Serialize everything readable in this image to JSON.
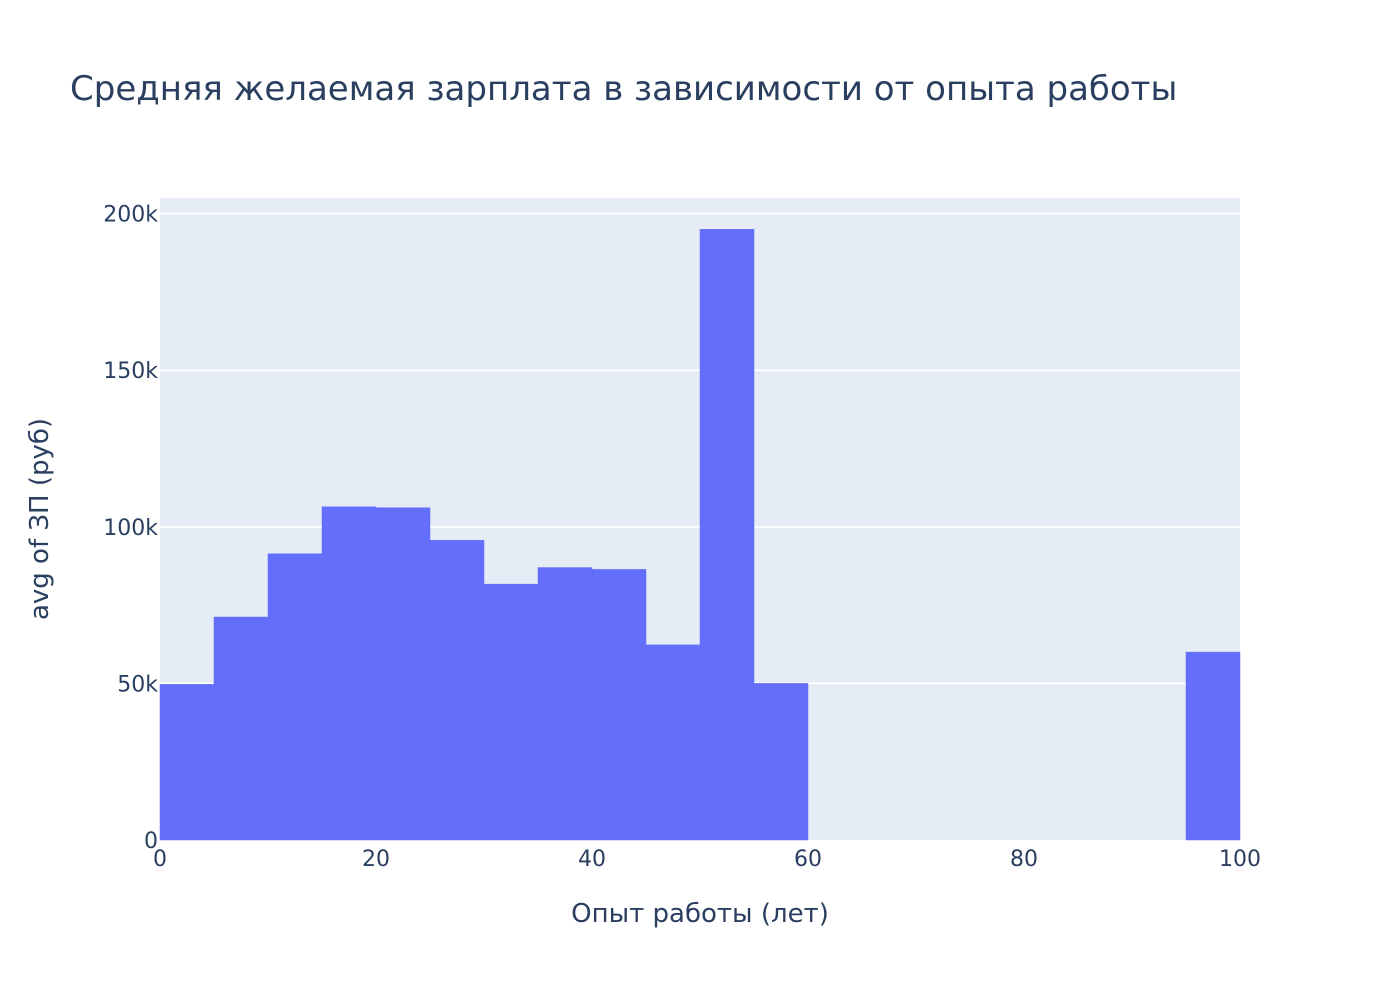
{
  "chart_data": {
    "type": "bar",
    "title": "Средняя желаемая зарплата в зависимости от опыта работы",
    "xlabel": "Опыт работы (лет)",
    "ylabel": "avg of ЗП (руб)",
    "xlim": [
      0,
      100
    ],
    "ylim": [
      0,
      205000
    ],
    "grid": true,
    "x_ticks": [
      {
        "value": 0,
        "label": "0"
      },
      {
        "value": 20,
        "label": "20"
      },
      {
        "value": 40,
        "label": "40"
      },
      {
        "value": 60,
        "label": "60"
      },
      {
        "value": 80,
        "label": "80"
      },
      {
        "value": 100,
        "label": "100"
      }
    ],
    "y_ticks": [
      {
        "value": 0,
        "label": "0"
      },
      {
        "value": 50000,
        "label": "50k"
      },
      {
        "value": 100000,
        "label": "100k"
      },
      {
        "value": 150000,
        "label": "150k"
      },
      {
        "value": 200000,
        "label": "200k"
      }
    ],
    "series": [
      {
        "color": "#636efa",
        "bins": [
          {
            "x0": 0,
            "x1": 5,
            "y": 49700
          },
          {
            "x0": 5,
            "x1": 10,
            "y": 71200
          },
          {
            "x0": 10,
            "x1": 15,
            "y": 91400
          },
          {
            "x0": 15,
            "x1": 20,
            "y": 106400
          },
          {
            "x0": 20,
            "x1": 25,
            "y": 106100
          },
          {
            "x0": 25,
            "x1": 30,
            "y": 95700
          },
          {
            "x0": 30,
            "x1": 35,
            "y": 81700
          },
          {
            "x0": 35,
            "x1": 40,
            "y": 87000
          },
          {
            "x0": 40,
            "x1": 45,
            "y": 86400
          },
          {
            "x0": 45,
            "x1": 50,
            "y": 62300
          },
          {
            "x0": 50,
            "x1": 55,
            "y": 195000
          },
          {
            "x0": 55,
            "x1": 60,
            "y": 50000
          },
          {
            "x0": 95,
            "x1": 100,
            "y": 60000
          }
        ]
      }
    ],
    "colors": {
      "plot_background": "#e5ecf6",
      "grid": "#ffffff",
      "text": "#2a3f5f",
      "bar": "#636efa"
    }
  }
}
